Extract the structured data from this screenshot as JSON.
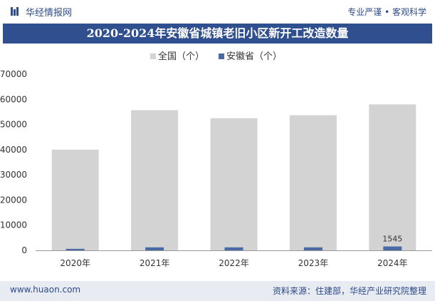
{
  "header": {
    "brand": "华经情报网",
    "slogan": "专业严谨 • 客观科学"
  },
  "footer": {
    "site": "www.huaon.com",
    "source": "资料来源：住建部，华经产业研究院整理"
  },
  "colors": {
    "title_bg": "#2f4f8f",
    "national": "#d3d3d3",
    "anhui": "#4a6aa5",
    "footer_bg": "#e8ebf1"
  },
  "chart_data": {
    "type": "bar",
    "title": "2020-2024年安徽省城镇老旧小区新开工改造数量",
    "categories": [
      "2020年",
      "2021年",
      "2022年",
      "2023年",
      "2024年"
    ],
    "series": [
      {
        "name": "全国（个）",
        "values": [
          40000,
          55700,
          52500,
          53700,
          58000
        ],
        "color": "#d3d3d3"
      },
      {
        "name": "安徽省（个）",
        "values": [
          600,
          1200,
          1200,
          1200,
          1545
        ],
        "color": "#4a6aa5"
      }
    ],
    "ylim": [
      0,
      70000
    ],
    "yticks": [
      "0",
      "10000",
      "20000",
      "30000",
      "40000",
      "50000",
      "60000",
      "70000"
    ],
    "data_labels": [
      {
        "series": 1,
        "index": 4,
        "text": "1545"
      }
    ],
    "legend_position": "top-center",
    "grid": false
  }
}
